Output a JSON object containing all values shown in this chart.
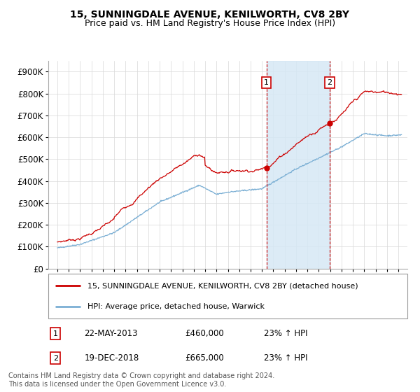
{
  "title": "15, SUNNINGDALE AVENUE, KENILWORTH, CV8 2BY",
  "subtitle": "Price paid vs. HM Land Registry's House Price Index (HPI)",
  "red_label": "15, SUNNINGDALE AVENUE, KENILWORTH, CV8 2BY (detached house)",
  "blue_label": "HPI: Average price, detached house, Warwick",
  "sale1_date": "22-MAY-2013",
  "sale1_price": 460000,
  "sale1_label": "1",
  "sale1_hpi_pct": "23% ↑ HPI",
  "sale2_date": "19-DEC-2018",
  "sale2_price": 665000,
  "sale2_label": "2",
  "sale2_hpi_pct": "23% ↑ HPI",
  "footer": "Contains HM Land Registry data © Crown copyright and database right 2024.\nThis data is licensed under the Open Government Licence v3.0.",
  "ylim": [
    0,
    950000
  ],
  "yticks": [
    0,
    100000,
    200000,
    300000,
    400000,
    500000,
    600000,
    700000,
    800000,
    900000
  ],
  "ylabels": [
    "£0",
    "£100K",
    "£200K",
    "£300K",
    "£400K",
    "£500K",
    "£600K",
    "£700K",
    "£800K",
    "£900K"
  ],
  "red_color": "#cc0000",
  "blue_color": "#7bafd4",
  "shade_color": "#d6e8f5",
  "sale1_x": 2013.39,
  "sale2_x": 2018.97,
  "marker_color": "#cc0000",
  "vline_color": "#cc0000",
  "box_color": "#cc0000",
  "bg_color": "#ffffff",
  "grid_color": "#d8d8d8"
}
